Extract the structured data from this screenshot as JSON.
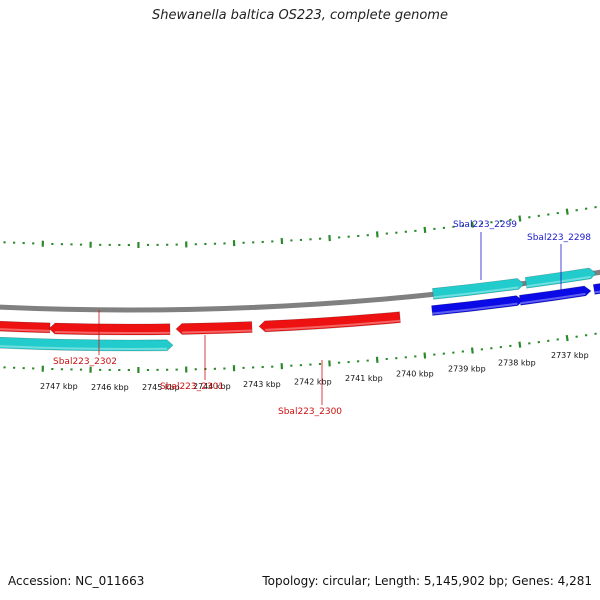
{
  "title": "Shewanella baltica OS223, complete genome",
  "footer": {
    "accession": "Accession: NC_011663",
    "summary": "Topology: circular; Length: 5,145,902 bp; Genes: 4,281"
  },
  "scale_labels": [
    "2747 kbp",
    "2746 kbp",
    "2745 kbp",
    "2744 kbp",
    "2743 kbp",
    "2742 kbp",
    "2741 kbp",
    "2740 kbp",
    "2739 kbp",
    "2738 kbp",
    "2737 kbp"
  ],
  "gene_labels": {
    "forward": [
      "Sbal223_2299",
      "Sbal223_2298"
    ],
    "reverse": [
      "Sbal223_2302",
      "Sbal223_2301",
      "Sbal223_2300"
    ]
  },
  "colors": {
    "forward_gene": "#0a0ae6",
    "forward_cds": "#22cccc",
    "reverse_gene": "#ee1111",
    "reverse_cds": "#22cccc",
    "backbone": "#808080",
    "ticks": "#2a8a2a",
    "forward_label": "#1a1acc",
    "reverse_label": "#cc1111"
  }
}
